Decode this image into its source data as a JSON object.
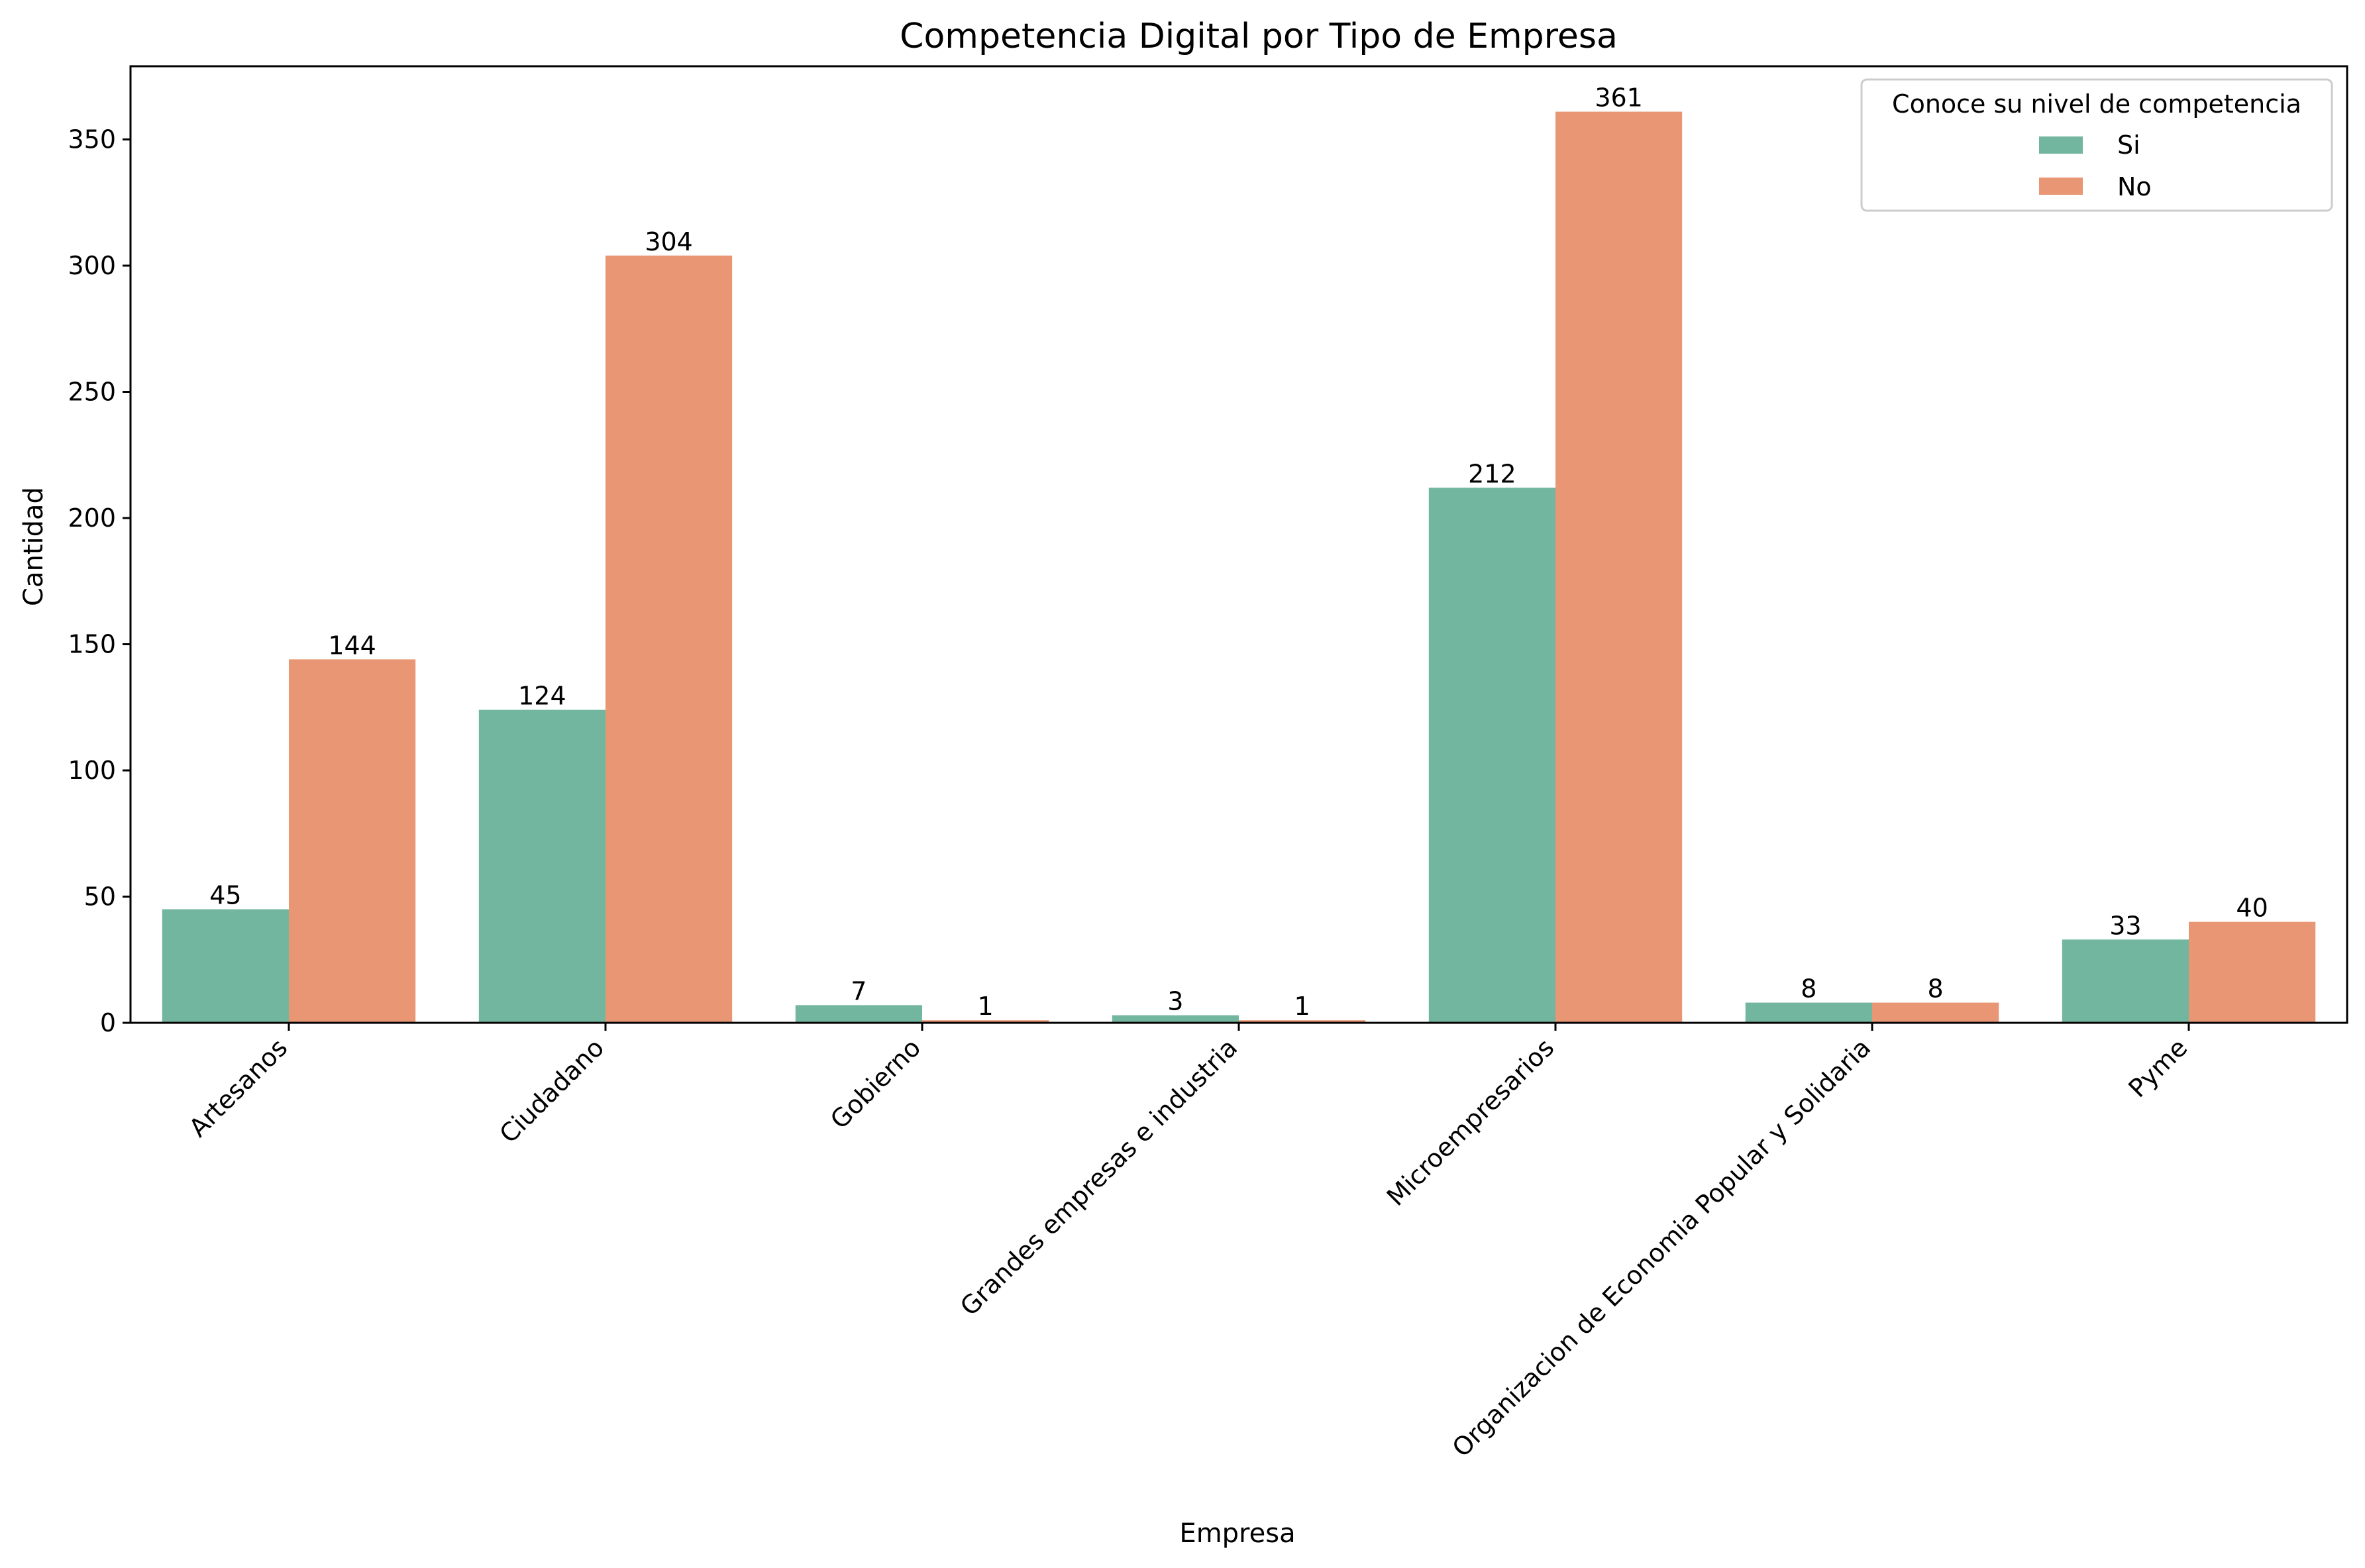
{
  "chart_data": {
    "type": "bar",
    "title": "Competencia Digital por Tipo de Empresa",
    "xlabel": "Empresa",
    "ylabel": "Cantidad",
    "ylim": [
      0,
      379
    ],
    "yticks": [
      0,
      50,
      100,
      150,
      200,
      250,
      300,
      350
    ],
    "categories": [
      "Artesanos",
      "Ciudadano",
      "Gobierno",
      "Grandes empresas e industria",
      "Microempresarios",
      "Organizacion de Economia Popular y Solidaria",
      "Pyme"
    ],
    "series": [
      {
        "name": "Si",
        "color": "#73b6a0",
        "values": [
          45,
          124,
          7,
          3,
          212,
          8,
          33
        ]
      },
      {
        "name": "No",
        "color": "#e99675",
        "values": [
          144,
          304,
          1,
          1,
          361,
          8,
          40
        ]
      }
    ],
    "legend": {
      "title": "Conoce su nivel de competencia",
      "placement": "top-right"
    },
    "grid": false
  }
}
